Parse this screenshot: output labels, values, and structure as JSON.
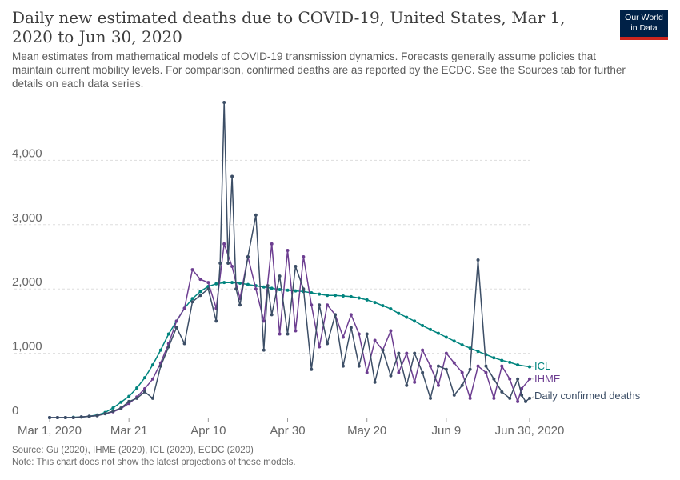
{
  "header": {
    "title": "Daily new estimated deaths due to COVID-19, United States, Mar 1, 2020 to Jun 30, 2020",
    "subtitle": "Mean estimates from mathematical models of COVID-19 transmission dynamics. Forecasts generally assume policies that maintain current mobility levels. For comparison, confirmed deaths are as reported by the ECDC. See the Sources tab for further details on each data series."
  },
  "logo": {
    "line1": "Our World",
    "line2": "in Data"
  },
  "footer": {
    "source": "Source: Gu (2020), IHME (2020), ICL (2020), ECDC (2020)",
    "note": "Note: This chart does not show the latest projections of these models."
  },
  "colors": {
    "icl": "#00847e",
    "ihme": "#6d3e91",
    "confirmed": "#3c4e66",
    "grid": "#dddddd",
    "axis": "#666666"
  },
  "chart_data": {
    "type": "line",
    "start_date": "2020-03-01",
    "xlabel": "",
    "ylabel": "",
    "xlim": [
      0,
      121
    ],
    "ylim": [
      0,
      5000
    ],
    "yticks": [
      0,
      1000,
      2000,
      3000,
      4000
    ],
    "ytick_labels": [
      "0",
      "1,000",
      "2,000",
      "3,000",
      "4,000"
    ],
    "xticks": [
      0,
      20,
      40,
      60,
      80,
      100,
      121
    ],
    "xtick_labels": [
      "Mar 1, 2020",
      "Mar 21",
      "Apr 10",
      "Apr 30",
      "May 20",
      "Jun 9",
      "Jun 30, 2020"
    ],
    "series": [
      {
        "name": "ICL",
        "key": "icl",
        "x": [
          0,
          2,
          4,
          6,
          8,
          10,
          12,
          14,
          16,
          18,
          20,
          22,
          24,
          26,
          28,
          30,
          32,
          34,
          36,
          38,
          40,
          42,
          44,
          46,
          48,
          50,
          52,
          54,
          56,
          58,
          60,
          62,
          64,
          66,
          68,
          70,
          72,
          74,
          76,
          78,
          80,
          82,
          84,
          86,
          88,
          90,
          92,
          94,
          96,
          98,
          100,
          102,
          104,
          106,
          108,
          110,
          112,
          114,
          116,
          118,
          121
        ],
        "y": [
          0,
          0,
          0,
          5,
          10,
          20,
          40,
          80,
          150,
          240,
          330,
          460,
          620,
          820,
          1050,
          1300,
          1500,
          1700,
          1850,
          1960,
          2040,
          2080,
          2100,
          2100,
          2090,
          2070,
          2050,
          2030,
          2010,
          1990,
          1980,
          1970,
          1960,
          1940,
          1920,
          1900,
          1900,
          1890,
          1880,
          1860,
          1830,
          1790,
          1740,
          1690,
          1620,
          1560,
          1500,
          1430,
          1370,
          1310,
          1250,
          1190,
          1130,
          1080,
          1030,
          980,
          930,
          890,
          860,
          820,
          790
        ]
      },
      {
        "name": "IHME",
        "key": "ihme",
        "x": [
          0,
          2,
          4,
          6,
          8,
          10,
          12,
          14,
          16,
          18,
          20,
          22,
          24,
          26,
          28,
          30,
          32,
          34,
          36,
          38,
          40,
          42,
          44,
          46,
          48,
          50,
          52,
          54,
          56,
          58,
          60,
          62,
          64,
          66,
          68,
          70,
          72,
          74,
          76,
          78,
          80,
          82,
          84,
          86,
          88,
          90,
          92,
          94,
          96,
          98,
          100,
          102,
          104,
          106,
          108,
          110,
          112,
          114,
          116,
          118,
          119,
          121
        ],
        "y": [
          0,
          0,
          0,
          0,
          10,
          20,
          30,
          60,
          90,
          140,
          220,
          320,
          450,
          600,
          850,
          1150,
          1500,
          1700,
          2300,
          2150,
          2100,
          1700,
          2700,
          2350,
          1850,
          2500,
          2000,
          1500,
          2700,
          1300,
          2600,
          1350,
          2500,
          1750,
          1100,
          1750,
          1600,
          1250,
          1600,
          1300,
          700,
          1200,
          1050,
          1350,
          700,
          1000,
          550,
          1050,
          800,
          500,
          1000,
          850,
          700,
          300,
          800,
          700,
          300,
          800,
          600,
          250,
          450,
          600
        ]
      },
      {
        "name": "Daily confirmed deaths",
        "key": "confirmed",
        "x": [
          0,
          2,
          4,
          6,
          8,
          10,
          12,
          14,
          16,
          18,
          20,
          22,
          24,
          26,
          28,
          30,
          32,
          34,
          36,
          38,
          40,
          42,
          43,
          44,
          45,
          46,
          47,
          48,
          50,
          52,
          54,
          55,
          56,
          58,
          60,
          62,
          64,
          66,
          68,
          70,
          72,
          74,
          76,
          78,
          80,
          82,
          84,
          86,
          88,
          90,
          92,
          94,
          96,
          98,
          100,
          102,
          104,
          106,
          108,
          110,
          112,
          114,
          116,
          118,
          119,
          120,
          121
        ],
        "y": [
          0,
          0,
          0,
          0,
          10,
          20,
          30,
          60,
          100,
          150,
          250,
          300,
          400,
          300,
          800,
          1100,
          1400,
          1150,
          1800,
          1900,
          2000,
          1500,
          2400,
          4900,
          2400,
          3750,
          2000,
          1750,
          2500,
          3150,
          1050,
          2050,
          1600,
          2200,
          1300,
          2350,
          2000,
          750,
          1750,
          1150,
          1600,
          800,
          1400,
          800,
          1300,
          550,
          1050,
          650,
          1000,
          500,
          1000,
          700,
          300,
          800,
          750,
          350,
          500,
          750,
          2450,
          800,
          600,
          400,
          300,
          600,
          350,
          250,
          300
        ]
      }
    ],
    "end_labels": [
      "ICL",
      "IHME",
      "Daily confirmed deaths"
    ]
  }
}
